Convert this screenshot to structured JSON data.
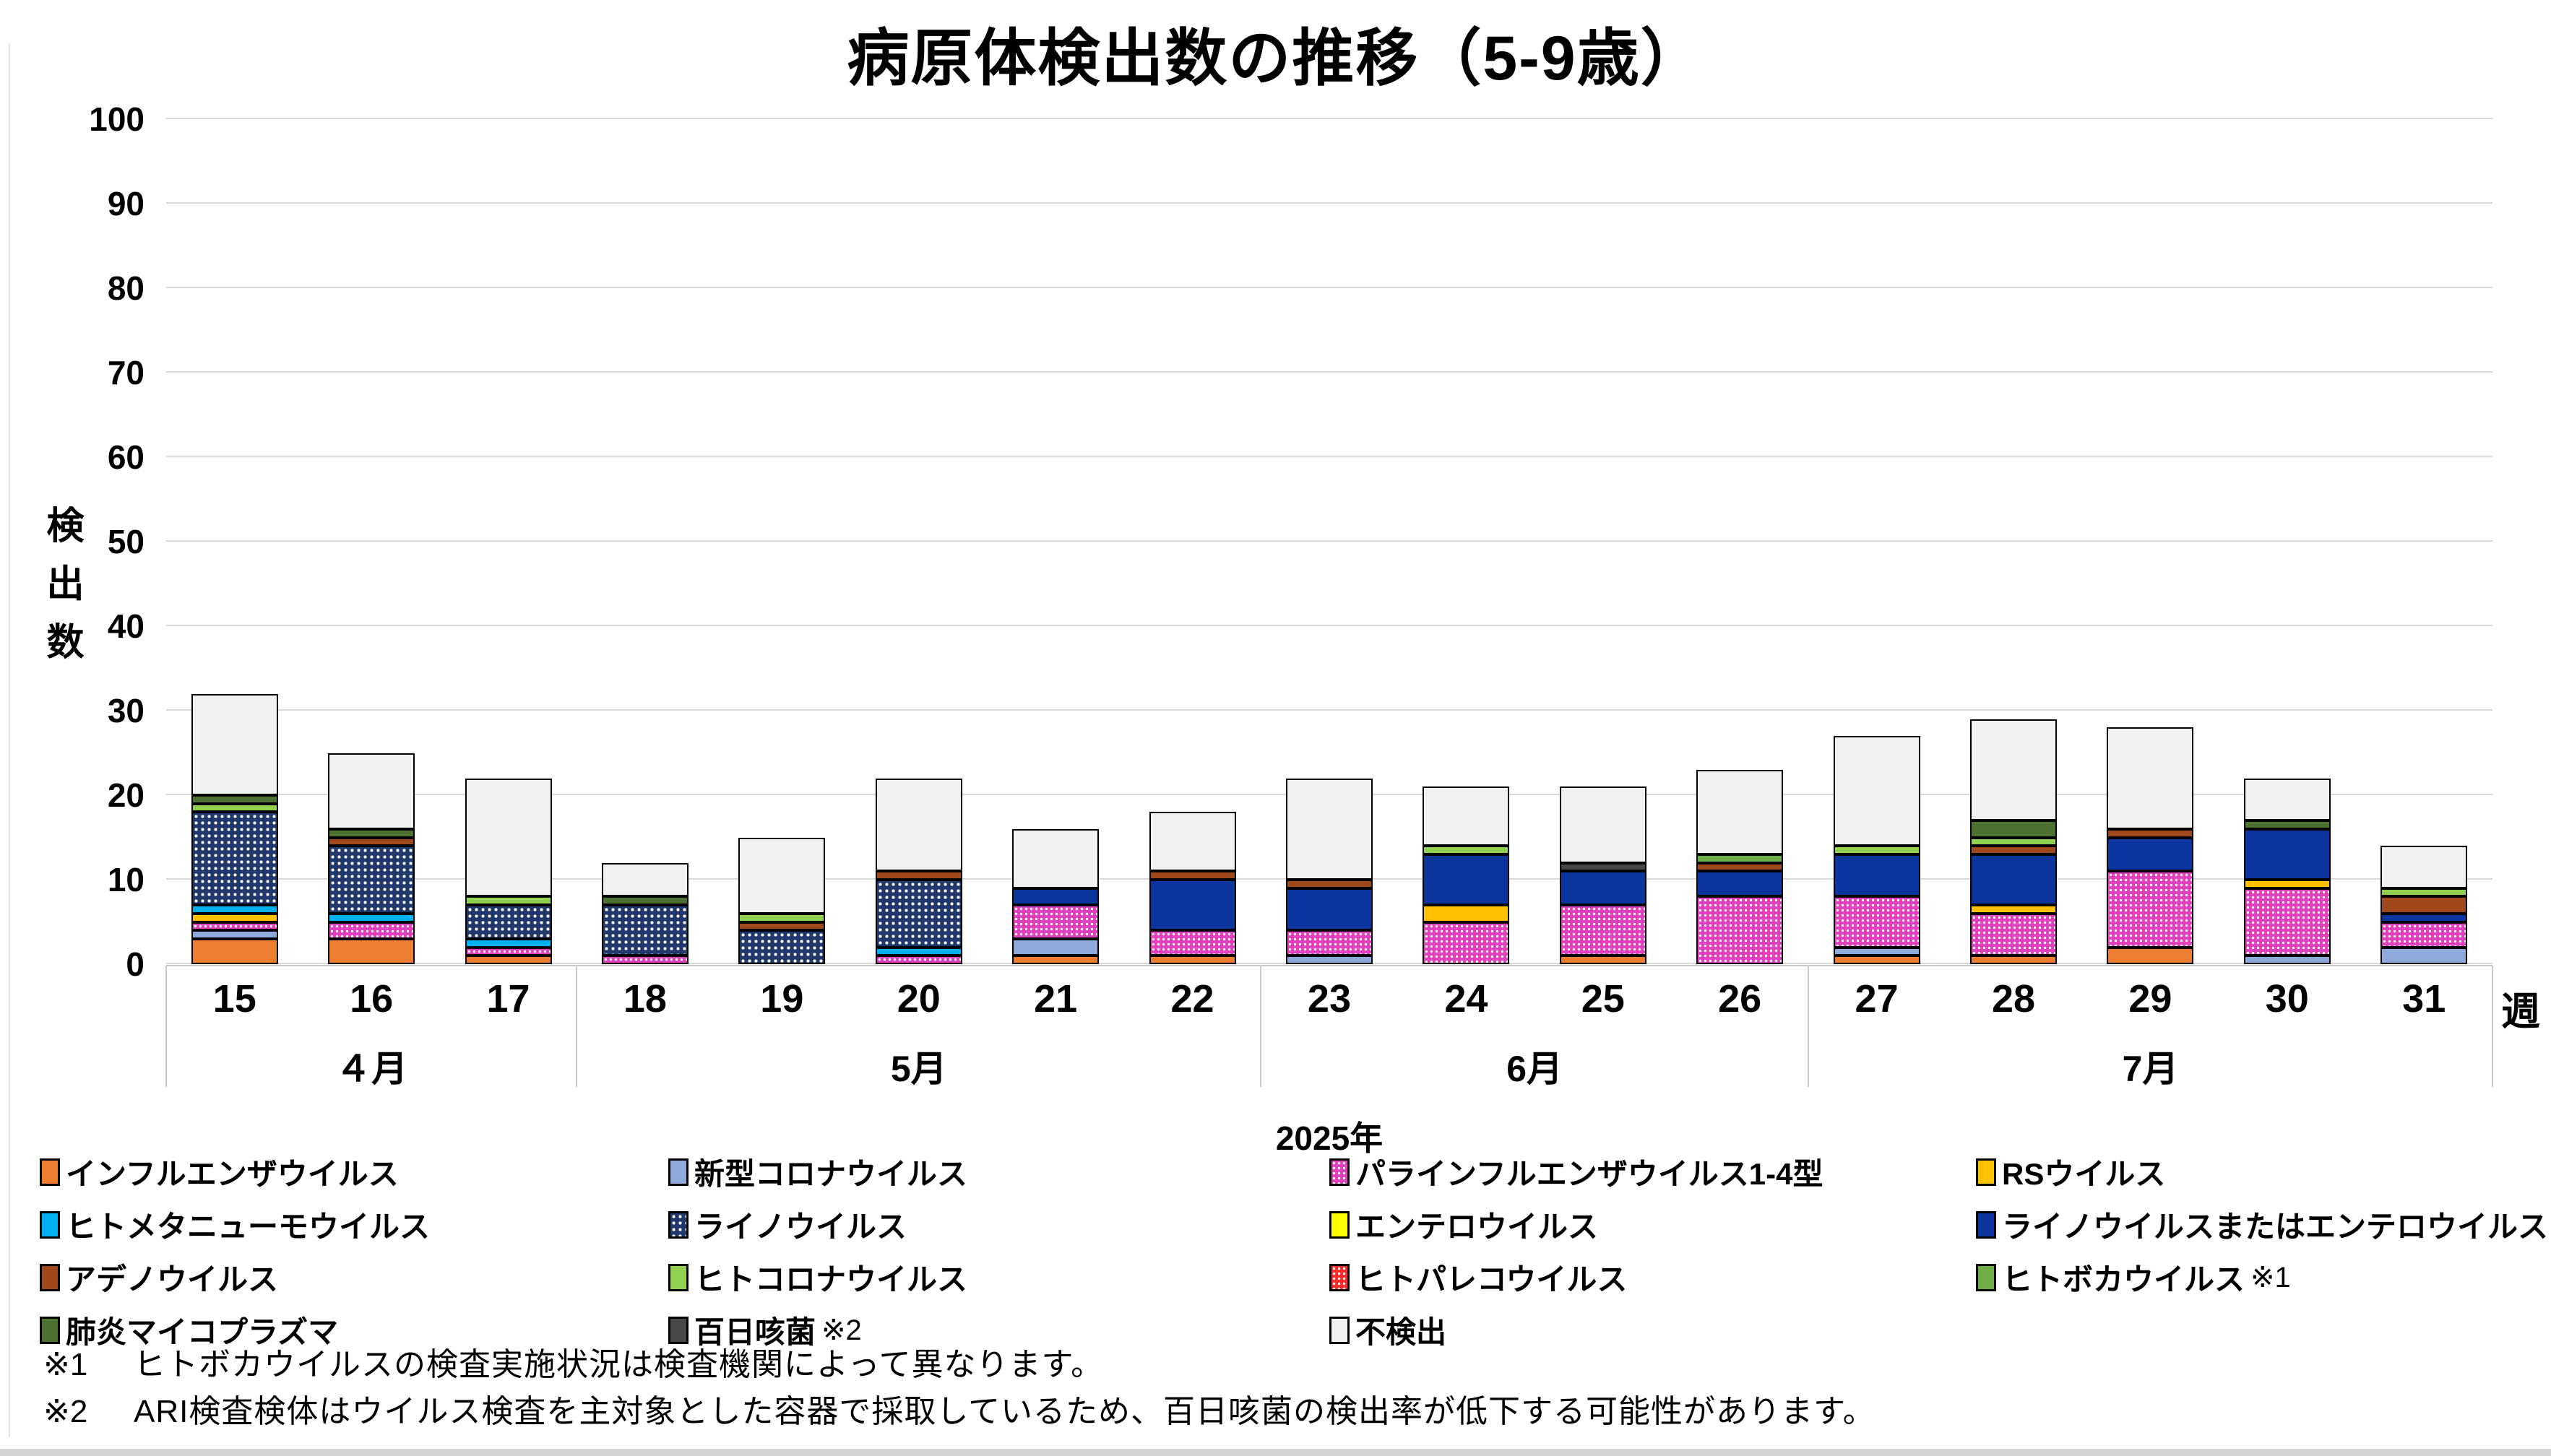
{
  "page": {
    "background": "#FFFFFF"
  },
  "chart_data": {
    "type": "bar",
    "subtype": "stacked-vertical",
    "title": "病原体検出数の推移（5-9歳）",
    "ylabel": "検出数",
    "xlabel": "週",
    "year_label": "2025年",
    "ylim": [
      0,
      100
    ],
    "ytick_step": 10,
    "grid": true,
    "categories": [
      "15",
      "16",
      "17",
      "18",
      "19",
      "20",
      "21",
      "22",
      "23",
      "24",
      "25",
      "26",
      "27",
      "28",
      "29",
      "30",
      "31"
    ],
    "month_groups": [
      {
        "label": "４月",
        "span": 3
      },
      {
        "label": "5月",
        "span": 5
      },
      {
        "label": "6月",
        "span": 4
      },
      {
        "label": "7月",
        "span": 5
      }
    ],
    "totals": [
      32,
      25,
      22,
      12,
      15,
      22,
      16,
      18,
      22,
      21,
      21,
      23,
      27,
      29,
      28,
      22,
      14
    ],
    "series": [
      {
        "key": "influenza",
        "name": "インフルエンザウイルス",
        "color": "#ED7D31",
        "pattern": "solid",
        "values": [
          3,
          3,
          1,
          0,
          0,
          0,
          1,
          1,
          0,
          0,
          1,
          0,
          1,
          1,
          2,
          0,
          0
        ]
      },
      {
        "key": "sars_cov_2",
        "name": "新型コロナウイルス",
        "color": "#8EA9DB",
        "pattern": "solid",
        "values": [
          1,
          0,
          0,
          0,
          0,
          0,
          2,
          0,
          1,
          0,
          0,
          0,
          1,
          0,
          0,
          1,
          2
        ]
      },
      {
        "key": "parainfluenza",
        "name": "パラインフルエンザウイルス1-4型",
        "color": "#E040BD",
        "pattern": "dots-fine",
        "values": [
          1,
          2,
          1,
          1,
          0,
          1,
          4,
          3,
          3,
          5,
          6,
          8,
          6,
          5,
          9,
          8,
          3
        ]
      },
      {
        "key": "rsv",
        "name": "RSウイルス",
        "color": "#FFC000",
        "pattern": "solid",
        "values": [
          1,
          0,
          0,
          0,
          0,
          0,
          0,
          0,
          0,
          2,
          0,
          0,
          0,
          1,
          0,
          1,
          0
        ]
      },
      {
        "key": "hmpv",
        "name": "ヒトメタニューモウイルス",
        "color": "#00B0F0",
        "pattern": "solid",
        "values": [
          1,
          1,
          1,
          0,
          0,
          1,
          0,
          0,
          0,
          0,
          0,
          0,
          0,
          0,
          0,
          0,
          0
        ]
      },
      {
        "key": "rhinovirus",
        "name": "ライノウイルス",
        "color": "#20386B",
        "pattern": "dots",
        "values": [
          11,
          8,
          4,
          6,
          4,
          8,
          0,
          0,
          0,
          0,
          0,
          0,
          0,
          0,
          0,
          0,
          0
        ]
      },
      {
        "key": "enterovirus",
        "name": "エンテロウイルス",
        "color": "#FFFF00",
        "pattern": "solid",
        "values": [
          0,
          0,
          0,
          0,
          0,
          0,
          0,
          0,
          0,
          0,
          0,
          0,
          0,
          0,
          0,
          0,
          0
        ]
      },
      {
        "key": "rhino_or_entero",
        "name": "ライノウイルスまたはエンテロウイルス",
        "color": "#0C35A0",
        "pattern": "solid",
        "values": [
          0,
          0,
          0,
          0,
          0,
          0,
          2,
          6,
          5,
          6,
          4,
          3,
          5,
          6,
          4,
          6,
          1
        ]
      },
      {
        "key": "adenovirus",
        "name": "アデノウイルス",
        "color": "#9E481C",
        "pattern": "solid",
        "values": [
          0,
          1,
          0,
          0,
          1,
          1,
          0,
          1,
          1,
          0,
          0,
          1,
          0,
          1,
          1,
          0,
          2
        ]
      },
      {
        "key": "hcov",
        "name": "ヒトコロナウイルス",
        "color": "#92D050",
        "pattern": "solid",
        "values": [
          1,
          0,
          1,
          0,
          1,
          0,
          0,
          0,
          0,
          1,
          0,
          0,
          1,
          1,
          0,
          0,
          1
        ]
      },
      {
        "key": "parechovirus",
        "name": "ヒトパレコウイルス",
        "color": "#FF2A2A",
        "pattern": "dots-fine",
        "values": [
          0,
          0,
          0,
          0,
          0,
          0,
          0,
          0,
          0,
          0,
          0,
          0,
          0,
          0,
          0,
          0,
          0
        ]
      },
      {
        "key": "bocavirus",
        "name": "ヒトボカウイルス",
        "color": "#70AD47",
        "pattern": "solid",
        "values": [
          0,
          0,
          0,
          0,
          0,
          0,
          0,
          0,
          0,
          0,
          0,
          1,
          0,
          0,
          0,
          0,
          0
        ]
      },
      {
        "key": "mycoplasma",
        "name": "肺炎マイコプラズマ",
        "color": "#4E7132",
        "pattern": "solid",
        "values": [
          1,
          1,
          0,
          1,
          0,
          0,
          0,
          0,
          0,
          0,
          0,
          0,
          0,
          2,
          0,
          1,
          0
        ]
      },
      {
        "key": "pertussis",
        "name": "百日咳菌",
        "color": "#474747",
        "pattern": "solid",
        "values": [
          0,
          0,
          0,
          0,
          0,
          0,
          0,
          0,
          0,
          0,
          1,
          0,
          0,
          0,
          0,
          0,
          0
        ]
      },
      {
        "key": "not_detected",
        "name": "不検出",
        "color": "#F1F1F1",
        "pattern": "solid",
        "values": [
          12,
          9,
          14,
          4,
          9,
          11,
          7,
          7,
          12,
          7,
          9,
          10,
          13,
          12,
          12,
          5,
          5
        ]
      }
    ],
    "legend_order": [
      {
        "key": "influenza"
      },
      {
        "key": "sars_cov_2"
      },
      {
        "key": "parainfluenza"
      },
      {
        "key": "rsv"
      },
      {
        "key": "hmpv"
      },
      {
        "key": "rhinovirus"
      },
      {
        "key": "enterovirus"
      },
      {
        "key": "rhino_or_entero"
      },
      {
        "key": "adenovirus"
      },
      {
        "key": "hcov"
      },
      {
        "key": "parechovirus"
      },
      {
        "key": "bocavirus",
        "suffix": "※1"
      },
      {
        "key": "mycoplasma",
        "suffix": "",
        "suffix2": ""
      },
      {
        "key": "pertussis",
        "suffix": "※2"
      },
      {
        "key": "not_detected"
      }
    ],
    "legend_position": "bottom"
  },
  "footnotes": [
    {
      "mark": "※1",
      "text": "ヒトボカウイルスの検査実施状況は検査機関によって異なります。"
    },
    {
      "mark": "※2",
      "text": "ARI検査検体はウイルス検査を主対象とした容器で採取しているため、百日咳菌の検出率が低下する可能性があります。"
    }
  ]
}
